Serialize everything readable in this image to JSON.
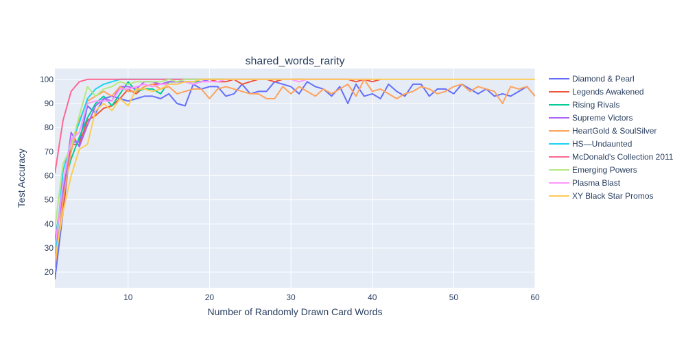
{
  "chart_data": {
    "type": "line",
    "title": "shared_words_rarity",
    "xlabel": "Number of Randomly Drawn Card Words",
    "ylabel": "Test Accuracy",
    "xlim": [
      1,
      60
    ],
    "ylim": [
      13.5,
      104.5
    ],
    "xticks": [
      10,
      20,
      30,
      40,
      50,
      60
    ],
    "yticks": [
      20,
      30,
      40,
      50,
      60,
      70,
      80,
      90,
      100
    ],
    "grid": true,
    "legend_position": "right",
    "series": [
      {
        "name": "Diamond & Pearl",
        "color": "#636efa",
        "x": [
          1,
          2,
          3,
          4,
          5,
          6,
          7,
          8,
          9,
          10,
          11,
          12,
          13,
          14,
          15,
          16,
          17,
          18,
          19,
          20,
          21,
          22,
          23,
          24,
          25,
          26,
          27,
          28,
          29,
          30,
          31,
          32,
          33,
          34,
          35,
          36,
          37,
          38,
          39,
          40,
          41,
          42,
          43,
          44,
          45,
          46,
          47,
          48,
          49,
          50,
          51,
          52,
          53,
          54,
          55,
          56,
          57,
          58,
          59,
          60
        ],
        "y": [
          17,
          45,
          74,
          74,
          89,
          86,
          92,
          93,
          92,
          91,
          92,
          93,
          93,
          92,
          94,
          90,
          89,
          98,
          96,
          97,
          97,
          93,
          94,
          98,
          94,
          95,
          95,
          99,
          98,
          97,
          94,
          99,
          97,
          96,
          93,
          97,
          90,
          98,
          93,
          94,
          92,
          98,
          95,
          93,
          98,
          98,
          93,
          96,
          96,
          94,
          98,
          96,
          94,
          96,
          93,
          94,
          93,
          95,
          97,
          93
        ]
      },
      {
        "name": "Legends Awakened",
        "color": "#ef553b",
        "x": [
          1,
          2,
          3,
          4,
          5,
          6,
          7,
          8,
          9,
          10,
          11,
          12,
          13,
          14,
          15,
          16,
          17,
          18,
          19,
          20,
          21,
          22,
          23,
          24,
          25,
          26,
          27,
          28,
          29,
          30,
          31,
          32,
          33,
          34,
          35,
          36,
          37,
          38,
          39,
          40,
          41
        ],
        "y": [
          26,
          47,
          73,
          73,
          83,
          85,
          88,
          89,
          92,
          96,
          94,
          97,
          98,
          98,
          99,
          99,
          99,
          99,
          99,
          100,
          99,
          99,
          100,
          98,
          99,
          100,
          100,
          99,
          100,
          100,
          100,
          100,
          100,
          100,
          100,
          100,
          100,
          99,
          100,
          99,
          100
        ]
      },
      {
        "name": "Rising Rivals",
        "color": "#00cc96",
        "x": [
          1,
          2,
          3,
          4,
          5,
          6,
          7,
          8,
          9,
          10,
          11,
          12,
          13,
          14,
          15,
          16,
          17,
          18,
          19,
          20,
          21,
          22,
          23,
          24,
          25,
          26,
          27,
          28,
          29,
          30
        ],
        "y": [
          33,
          55,
          67,
          76,
          84,
          90,
          93,
          89,
          94,
          99,
          95,
          96,
          96,
          94,
          99,
          99,
          99,
          99,
          99,
          100,
          100,
          100,
          100,
          100,
          100,
          100,
          100,
          100,
          100,
          100
        ]
      },
      {
        "name": "Supreme Victors",
        "color": "#ab63fa",
        "x": [
          1,
          2,
          3,
          4,
          5,
          6,
          7,
          8,
          9,
          10,
          11,
          12,
          13,
          14,
          15,
          16,
          17,
          18,
          19,
          20,
          21,
          22,
          23,
          24,
          25,
          26,
          27,
          28,
          29,
          30
        ],
        "y": [
          33,
          52,
          78,
          72,
          81,
          89,
          92,
          91,
          97,
          97,
          96,
          99,
          99,
          98,
          99,
          99,
          99,
          98,
          99,
          100,
          100,
          100,
          100,
          100,
          100,
          100,
          100,
          100,
          100,
          100
        ]
      },
      {
        "name": "HeartGold & SoulSilver",
        "color": "#ffa15a",
        "x": [
          1,
          2,
          3,
          4,
          5,
          6,
          7,
          8,
          9,
          10,
          11,
          12,
          13,
          14,
          15,
          16,
          17,
          18,
          19,
          20,
          21,
          22,
          23,
          24,
          25,
          26,
          27,
          28,
          29,
          30,
          31,
          32,
          33,
          34,
          35,
          36,
          37,
          38,
          39,
          40,
          41,
          42,
          43,
          44,
          45,
          46,
          47,
          48,
          49,
          50,
          51,
          52,
          53,
          54,
          55,
          56,
          57,
          58,
          59,
          60
        ],
        "y": [
          22,
          50,
          70,
          83,
          91,
          93,
          95,
          93,
          97,
          95,
          95,
          97,
          98,
          96,
          97,
          94,
          95,
          96,
          96,
          92,
          96,
          97,
          96,
          95,
          94,
          94,
          92,
          92,
          97,
          94,
          97,
          95,
          93,
          96,
          94,
          96,
          98,
          93,
          100,
          95,
          96,
          94,
          92,
          94,
          95,
          97,
          96,
          94,
          95,
          97,
          98,
          95,
          97,
          96,
          95,
          90,
          97,
          96,
          97,
          93
        ]
      },
      {
        "name": "HS—Undaunted",
        "color": "#19d3f3",
        "x": [
          1,
          2,
          3,
          4,
          5,
          6,
          7,
          8,
          9,
          10,
          11,
          12,
          13,
          14,
          15,
          16,
          17,
          18,
          19,
          20,
          21,
          22,
          23,
          24,
          25,
          26,
          27,
          28,
          29,
          30
        ],
        "y": [
          25,
          62,
          74,
          82,
          92,
          96,
          98,
          99,
          100,
          100,
          100,
          100,
          100,
          100,
          100,
          100,
          100,
          100,
          100,
          100,
          100,
          100,
          100,
          100,
          100,
          100,
          100,
          100,
          100,
          100
        ]
      },
      {
        "name": "McDonald's Collection 2011",
        "color": "#ff6692",
        "x": [
          1,
          2,
          3,
          4,
          5,
          6,
          7,
          8,
          9,
          10,
          11,
          12,
          13,
          14,
          15,
          16,
          17,
          18,
          19,
          20,
          21,
          22,
          23,
          24,
          25,
          26,
          27,
          28,
          29,
          30
        ],
        "y": [
          61,
          83,
          95,
          99,
          100,
          100,
          100,
          100,
          100,
          100,
          100,
          100,
          100,
          100,
          100,
          100,
          100,
          100,
          100,
          100,
          100,
          100,
          100,
          100,
          100,
          100,
          100,
          100,
          100,
          100
        ]
      },
      {
        "name": "Emerging Powers",
        "color": "#b6e880",
        "x": [
          1,
          2,
          3,
          4,
          5,
          6,
          7,
          8,
          9,
          10,
          11,
          12,
          13,
          14,
          15,
          16,
          17,
          18,
          19,
          20,
          21,
          22,
          23,
          24,
          25,
          26,
          27,
          28,
          29,
          30
        ],
        "y": [
          38,
          65,
          72,
          85,
          97,
          93,
          96,
          97,
          99,
          98,
          99,
          99,
          99,
          99,
          100,
          99,
          100,
          100,
          100,
          100,
          100,
          100,
          100,
          100,
          100,
          100,
          100,
          100,
          100,
          100
        ]
      },
      {
        "name": "Plasma Blast",
        "color": "#ff97ff",
        "x": [
          1,
          2,
          3,
          4,
          5,
          6,
          7,
          8,
          9,
          10,
          11,
          12,
          13,
          14,
          15,
          16,
          17,
          18,
          19,
          20,
          21,
          22,
          23,
          24,
          25,
          26,
          27,
          28,
          29,
          30,
          31,
          32,
          33,
          34,
          35,
          36,
          37,
          38,
          39,
          40
        ],
        "y": [
          30,
          57,
          75,
          78,
          90,
          91,
          91,
          91,
          96,
          96,
          97,
          98,
          97,
          98,
          98,
          98,
          99,
          98,
          99,
          99,
          99,
          100,
          100,
          100,
          100,
          100,
          100,
          100,
          100,
          100,
          99,
          100,
          100,
          100,
          100,
          100,
          100,
          100,
          100,
          100
        ]
      },
      {
        "name": "XY Black Star Promos",
        "color": "#fecb52",
        "x": [
          1,
          2,
          3,
          4,
          5,
          6,
          7,
          8,
          9,
          10,
          11,
          12,
          13,
          14,
          15,
          16,
          17,
          18,
          19,
          20,
          21,
          22,
          23,
          24,
          25,
          26,
          27,
          28,
          29,
          30,
          31,
          32,
          33,
          34,
          35,
          36,
          37,
          38,
          39,
          40,
          41,
          42,
          43,
          44,
          45,
          46,
          47,
          48,
          49,
          50,
          51,
          52,
          53,
          54,
          55,
          56,
          57,
          58,
          59,
          60
        ],
        "y": [
          25,
          45,
          60,
          71,
          73,
          87,
          90,
          87,
          92,
          89,
          96,
          96,
          95,
          96,
          98,
          98,
          99,
          99,
          100,
          100,
          100,
          100,
          100,
          100,
          100,
          100,
          100,
          100,
          100,
          100,
          100,
          100,
          100,
          100,
          100,
          100,
          100,
          100,
          100,
          100,
          100,
          100,
          100,
          100,
          100,
          100,
          100,
          100,
          100,
          100,
          100,
          100,
          100,
          100,
          100,
          100,
          100,
          100,
          100,
          100
        ]
      }
    ]
  }
}
